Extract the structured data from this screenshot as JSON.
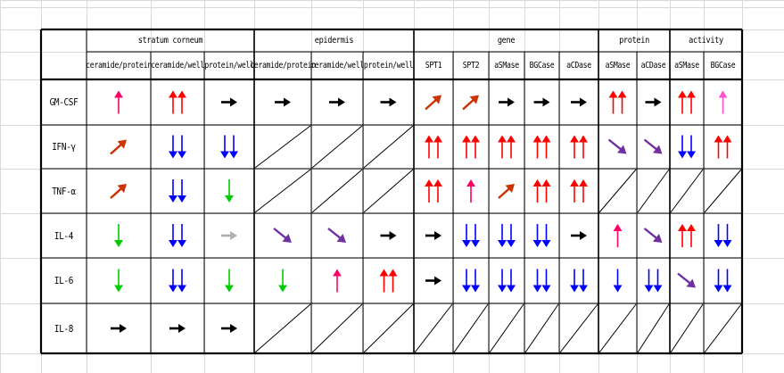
{
  "groups": [
    {
      "label": "stratum corneum",
      "span": 3
    },
    {
      "label": "epidermis",
      "span": 3
    },
    {
      "label": "gene",
      "span": 5
    },
    {
      "label": "protein",
      "span": 2
    },
    {
      "label": "activity",
      "span": 2
    }
  ],
  "columns": [
    "ceramide/protein",
    "ceramide/well",
    "protein/well",
    "ceramide/protein",
    "ceramide/well",
    "protein/well",
    "SPT1",
    "SPT2",
    "aSMase",
    "BGCase",
    "aCDase",
    "aSMase",
    "aCDase",
    "aSMase",
    "BGCase"
  ],
  "rows": [
    {
      "label": "GM-CSF",
      "cells": [
        "up1-pink",
        "upup-red",
        "right-black",
        "right-black",
        "right-black",
        "right-black",
        "diagup-orange",
        "diagup-orange",
        "right-black",
        "right-black",
        "right-black",
        "upup-red",
        "right-black",
        "upup-red",
        "up1-lightpink"
      ]
    },
    {
      "label": "IFN-γ",
      "cells": [
        "diagup-orange",
        "downdown-blue",
        "downdown-blue",
        "na",
        "na",
        "na",
        "upup-red",
        "upup-red",
        "upup-red",
        "upup-red",
        "upup-red",
        "diagdown-purple",
        "diagdown-purple",
        "downdown-blue",
        "upup-red"
      ]
    },
    {
      "label": "TNF-α",
      "cells": [
        "diagup-orange",
        "downdown-blue",
        "down1-green",
        "na",
        "na",
        "na",
        "upup-red",
        "up1-pink",
        "diagup-orange",
        "upup-red",
        "upup-red",
        "na",
        "na",
        "na",
        "na"
      ]
    },
    {
      "label": "IL-4",
      "cells": [
        "down1-green",
        "downdown-blue",
        "right-gray",
        "diagdown-purple",
        "diagdown-purple",
        "right-black",
        "right-black",
        "downdown-blue",
        "downdown-blue",
        "downdown-blue",
        "right-black",
        "up1-pink",
        "diagdown-purple",
        "upup-red",
        "downdown-blue"
      ]
    },
    {
      "label": "IL-6",
      "cells": [
        "down1-green",
        "downdown-blue",
        "down1-green",
        "down1-green",
        "up1-pink",
        "upup-red",
        "right-black",
        "downdown-blue",
        "downdown-blue",
        "downdown-blue",
        "downdown-blue",
        "down1-blue",
        "downdown-blue",
        "diagdown-purple",
        "downdown-blue"
      ]
    },
    {
      "label": "IL-8",
      "cells": [
        "right-black",
        "right-black",
        "right-black",
        "na",
        "na",
        "na",
        "na",
        "na",
        "na",
        "na",
        "na",
        "na",
        "na",
        "na",
        "na"
      ]
    }
  ],
  "colors": {
    "red": "#ff0000",
    "blue": "#0000ff",
    "green": "#00cc00",
    "pink": "#ff0066",
    "lightpink": "#ff55cc",
    "orange": "#cc3300",
    "purple": "#7030a0",
    "black": "#000000",
    "gray": "#b0b0b0"
  }
}
